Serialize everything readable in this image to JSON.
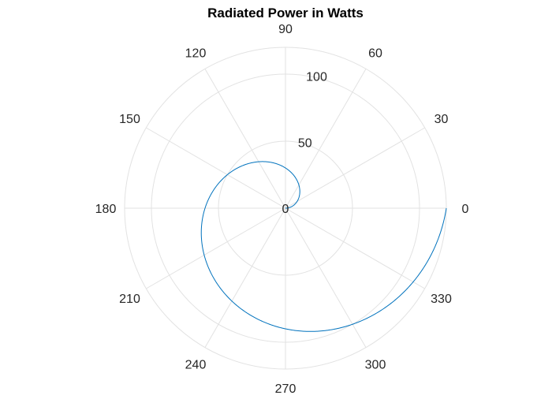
{
  "chart_data": {
    "type": "polar-line",
    "title": "Radiated Power in Watts",
    "angle_ticks": [
      "0",
      "30",
      "60",
      "90",
      "120",
      "150",
      "180",
      "210",
      "240",
      "270",
      "300",
      "330"
    ],
    "angle_tick_values": [
      0,
      30,
      60,
      90,
      120,
      150,
      180,
      210,
      240,
      270,
      300,
      330
    ],
    "radius_ticks": [
      "0",
      "50",
      "100"
    ],
    "radius_tick_values": [
      0,
      50,
      100
    ],
    "rlim": [
      0,
      120
    ],
    "grid": true,
    "series": [
      {
        "theta_deg": [
          0,
          15,
          30,
          45,
          60,
          75,
          90,
          105,
          120,
          135,
          150,
          165,
          180,
          195,
          210,
          225,
          240,
          255,
          270,
          285,
          300,
          315,
          330,
          345,
          360
        ],
        "r": [
          0,
          5,
          10,
          15,
          20,
          25,
          30,
          35,
          40,
          45,
          50,
          55,
          60,
          65,
          70,
          75,
          80,
          85,
          90,
          95,
          100,
          105,
          110,
          115,
          120
        ]
      }
    ],
    "colors": {
      "series": "#0072bd",
      "grid": "#e2e2e2",
      "text": "#262626"
    }
  }
}
